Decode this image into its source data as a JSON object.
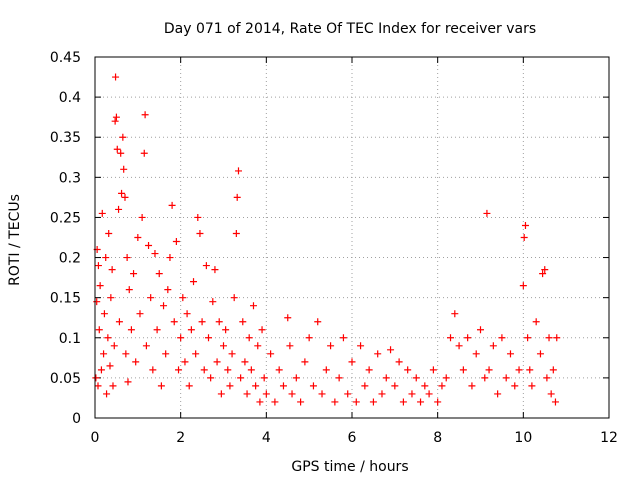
{
  "chart_data": {
    "type": "scatter",
    "title": "Day 071 of 2014, Rate Of TEC Index for receiver vars",
    "xlabel": "GPS time / hours",
    "ylabel": "ROTI / TECUs",
    "xlim": [
      0,
      12
    ],
    "ylim": [
      0,
      0.45
    ],
    "xticks": [
      0,
      2,
      4,
      6,
      8,
      10,
      12
    ],
    "yticks": [
      0,
      0.05,
      0.1,
      0.15,
      0.2,
      0.25,
      0.3,
      0.35,
      0.4,
      0.45
    ],
    "grid": true,
    "marker": "+",
    "color": "#ff0000",
    "series": [
      {
        "name": "ROTI",
        "points": [
          [
            0.02,
            0.05
          ],
          [
            0.04,
            0.145
          ],
          [
            0.05,
            0.21
          ],
          [
            0.07,
            0.04
          ],
          [
            0.08,
            0.19
          ],
          [
            0.1,
            0.11
          ],
          [
            0.12,
            0.165
          ],
          [
            0.15,
            0.06
          ],
          [
            0.17,
            0.255
          ],
          [
            0.2,
            0.08
          ],
          [
            0.22,
            0.13
          ],
          [
            0.25,
            0.2
          ],
          [
            0.27,
            0.03
          ],
          [
            0.3,
            0.1
          ],
          [
            0.32,
            0.23
          ],
          [
            0.35,
            0.065
          ],
          [
            0.37,
            0.15
          ],
          [
            0.4,
            0.185
          ],
          [
            0.42,
            0.04
          ],
          [
            0.45,
            0.09
          ],
          [
            0.47,
            0.37
          ],
          [
            0.48,
            0.425
          ],
          [
            0.5,
            0.375
          ],
          [
            0.52,
            0.335
          ],
          [
            0.55,
            0.26
          ],
          [
            0.57,
            0.12
          ],
          [
            0.6,
            0.33
          ],
          [
            0.62,
            0.28
          ],
          [
            0.65,
            0.35
          ],
          [
            0.67,
            0.31
          ],
          [
            0.7,
            0.275
          ],
          [
            0.72,
            0.08
          ],
          [
            0.75,
            0.2
          ],
          [
            0.77,
            0.045
          ],
          [
            0.8,
            0.16
          ],
          [
            0.85,
            0.11
          ],
          [
            0.9,
            0.18
          ],
          [
            0.95,
            0.07
          ],
          [
            1.0,
            0.225
          ],
          [
            1.05,
            0.13
          ],
          [
            1.1,
            0.25
          ],
          [
            1.15,
            0.33
          ],
          [
            1.17,
            0.378
          ],
          [
            1.2,
            0.09
          ],
          [
            1.25,
            0.215
          ],
          [
            1.3,
            0.15
          ],
          [
            1.35,
            0.06
          ],
          [
            1.4,
            0.205
          ],
          [
            1.45,
            0.11
          ],
          [
            1.5,
            0.18
          ],
          [
            1.55,
            0.04
          ],
          [
            1.6,
            0.14
          ],
          [
            1.65,
            0.08
          ],
          [
            1.7,
            0.16
          ],
          [
            1.75,
            0.2
          ],
          [
            1.8,
            0.265
          ],
          [
            1.85,
            0.12
          ],
          [
            1.9,
            0.22
          ],
          [
            1.95,
            0.06
          ],
          [
            2.0,
            0.1
          ],
          [
            2.05,
            0.15
          ],
          [
            2.1,
            0.07
          ],
          [
            2.15,
            0.13
          ],
          [
            2.2,
            0.04
          ],
          [
            2.25,
            0.11
          ],
          [
            2.3,
            0.17
          ],
          [
            2.35,
            0.08
          ],
          [
            2.4,
            0.25
          ],
          [
            2.45,
            0.23
          ],
          [
            2.5,
            0.12
          ],
          [
            2.55,
            0.06
          ],
          [
            2.6,
            0.19
          ],
          [
            2.65,
            0.1
          ],
          [
            2.7,
            0.05
          ],
          [
            2.75,
            0.145
          ],
          [
            2.8,
            0.185
          ],
          [
            2.85,
            0.07
          ],
          [
            2.9,
            0.12
          ],
          [
            2.95,
            0.03
          ],
          [
            3.0,
            0.09
          ],
          [
            3.05,
            0.11
          ],
          [
            3.1,
            0.06
          ],
          [
            3.15,
            0.04
          ],
          [
            3.2,
            0.08
          ],
          [
            3.25,
            0.15
          ],
          [
            3.3,
            0.23
          ],
          [
            3.32,
            0.275
          ],
          [
            3.35,
            0.308
          ],
          [
            3.4,
            0.05
          ],
          [
            3.45,
            0.12
          ],
          [
            3.5,
            0.07
          ],
          [
            3.55,
            0.03
          ],
          [
            3.6,
            0.1
          ],
          [
            3.65,
            0.06
          ],
          [
            3.7,
            0.14
          ],
          [
            3.75,
            0.04
          ],
          [
            3.8,
            0.09
          ],
          [
            3.85,
            0.02
          ],
          [
            3.9,
            0.11
          ],
          [
            3.95,
            0.05
          ],
          [
            4.0,
            0.03
          ],
          [
            4.1,
            0.08
          ],
          [
            4.2,
            0.02
          ],
          [
            4.3,
            0.06
          ],
          [
            4.4,
            0.04
          ],
          [
            4.5,
            0.125
          ],
          [
            4.55,
            0.09
          ],
          [
            4.6,
            0.03
          ],
          [
            4.7,
            0.05
          ],
          [
            4.8,
            0.02
          ],
          [
            4.9,
            0.07
          ],
          [
            5.0,
            0.1
          ],
          [
            5.1,
            0.04
          ],
          [
            5.2,
            0.12
          ],
          [
            5.3,
            0.03
          ],
          [
            5.4,
            0.06
          ],
          [
            5.5,
            0.09
          ],
          [
            5.6,
            0.02
          ],
          [
            5.7,
            0.05
          ],
          [
            5.8,
            0.1
          ],
          [
            5.9,
            0.03
          ],
          [
            6.0,
            0.07
          ],
          [
            6.1,
            0.02
          ],
          [
            6.2,
            0.09
          ],
          [
            6.3,
            0.04
          ],
          [
            6.4,
            0.06
          ],
          [
            6.5,
            0.02
          ],
          [
            6.6,
            0.08
          ],
          [
            6.7,
            0.03
          ],
          [
            6.8,
            0.05
          ],
          [
            6.9,
            0.085
          ],
          [
            7.0,
            0.04
          ],
          [
            7.1,
            0.07
          ],
          [
            7.2,
            0.02
          ],
          [
            7.3,
            0.06
          ],
          [
            7.4,
            0.03
          ],
          [
            7.5,
            0.05
          ],
          [
            7.6,
            0.02
          ],
          [
            7.7,
            0.04
          ],
          [
            7.8,
            0.03
          ],
          [
            7.9,
            0.06
          ],
          [
            8.0,
            0.02
          ],
          [
            8.1,
            0.04
          ],
          [
            8.2,
            0.05
          ],
          [
            8.3,
            0.1
          ],
          [
            8.4,
            0.13
          ],
          [
            8.5,
            0.09
          ],
          [
            8.6,
            0.06
          ],
          [
            8.7,
            0.1
          ],
          [
            8.8,
            0.04
          ],
          [
            8.9,
            0.08
          ],
          [
            9.0,
            0.11
          ],
          [
            9.1,
            0.05
          ],
          [
            9.15,
            0.255
          ],
          [
            9.2,
            0.06
          ],
          [
            9.3,
            0.09
          ],
          [
            9.4,
            0.03
          ],
          [
            9.5,
            0.1
          ],
          [
            9.6,
            0.05
          ],
          [
            9.7,
            0.08
          ],
          [
            9.8,
            0.04
          ],
          [
            9.9,
            0.06
          ],
          [
            10.0,
            0.165
          ],
          [
            10.02,
            0.225
          ],
          [
            10.05,
            0.24
          ],
          [
            10.1,
            0.1
          ],
          [
            10.15,
            0.06
          ],
          [
            10.2,
            0.04
          ],
          [
            10.3,
            0.12
          ],
          [
            10.4,
            0.08
          ],
          [
            10.45,
            0.18
          ],
          [
            10.5,
            0.185
          ],
          [
            10.55,
            0.05
          ],
          [
            10.6,
            0.1
          ],
          [
            10.65,
            0.03
          ],
          [
            10.7,
            0.06
          ],
          [
            10.75,
            0.02
          ],
          [
            10.78,
            0.1
          ]
        ]
      }
    ]
  }
}
